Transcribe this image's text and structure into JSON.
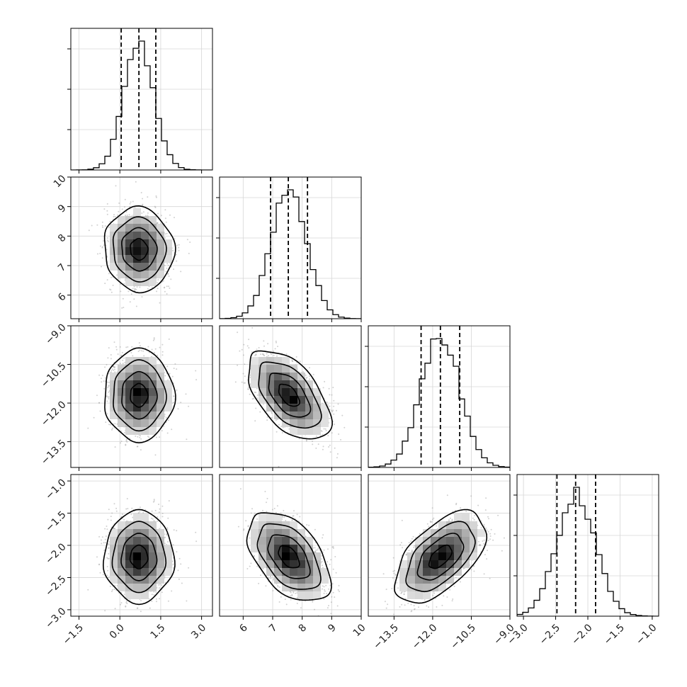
{
  "chart_data": {
    "type": "corner",
    "parameters": 4,
    "axes": [
      {
        "range": [
          -1.8,
          3.4
        ],
        "ticks": [
          -1.5,
          0.0,
          1.5,
          3.0
        ],
        "tick_labels": [
          "−1.5",
          "0.0",
          "1.5",
          "3.0"
        ]
      },
      {
        "range": [
          5.2,
          10.0
        ],
        "ticks": [
          6,
          7,
          8,
          9,
          10
        ],
        "tick_labels": [
          "6",
          "7",
          "8",
          "9",
          "10"
        ]
      },
      {
        "range": [
          -14.5,
          -9.0
        ],
        "ticks": [
          -13.5,
          -12.0,
          -10.5,
          -9.0
        ],
        "tick_labels": [
          "−13.5",
          "−12.0",
          "−10.5",
          "−9.0"
        ]
      },
      {
        "range": [
          -3.1,
          -0.9
        ],
        "ticks": [
          -3.0,
          -2.5,
          -2.0,
          -1.5,
          -1.0
        ],
        "tick_labels": [
          "−3.0",
          "−2.5",
          "−2.0",
          "−1.5",
          "−1.0"
        ]
      }
    ],
    "marginals": [
      {
        "mean": 0.7,
        "sd": 0.55,
        "quantiles": [
          0.05,
          0.7,
          1.32
        ]
      },
      {
        "mean": 7.55,
        "sd": 0.6,
        "quantiles": [
          6.93,
          7.53,
          8.18
        ]
      },
      {
        "mean": -11.7,
        "sd": 0.75,
        "quantiles": [
          -12.45,
          -11.7,
          -10.95
        ]
      },
      {
        "mean": -2.18,
        "sd": 0.3,
        "quantiles": [
          -2.48,
          -2.19,
          -1.88
        ]
      }
    ],
    "correlations": [
      [
        1.0,
        -0.05,
        0.0,
        0.0
      ],
      [
        -0.05,
        1.0,
        -0.55,
        -0.5
      ],
      [
        0.0,
        -0.55,
        1.0,
        0.55
      ],
      [
        0.0,
        -0.5,
        0.55,
        1.0
      ]
    ],
    "contour_levels_sigma": [
      0.5,
      1.0,
      1.5,
      2.0
    ],
    "grid": true,
    "hist_bins": 25
  }
}
